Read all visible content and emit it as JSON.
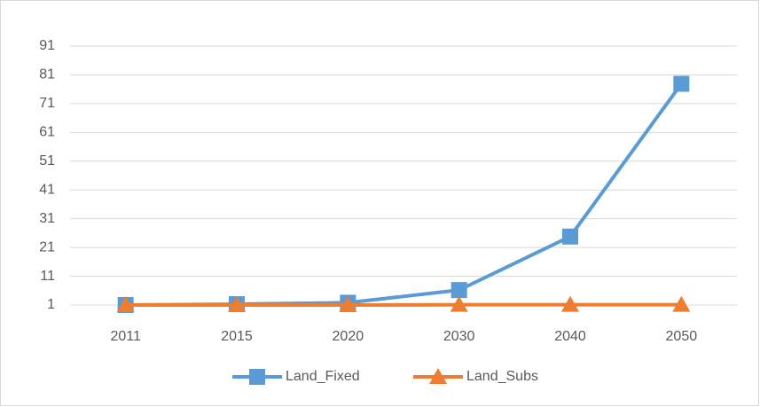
{
  "chart_data": {
    "type": "line",
    "categories": [
      "2011",
      "2015",
      "2020",
      "2030",
      "2040",
      "2050"
    ],
    "series": [
      {
        "name": "Land_Fixed",
        "color": "#5b9bd5",
        "marker": "square",
        "values": [
          1,
          1.3,
          1.8,
          6.2,
          24.8,
          77.9
        ]
      },
      {
        "name": "Land_Subs",
        "color": "#ed7d31",
        "marker": "triangle",
        "values": [
          1,
          1,
          1,
          1.1,
          1.1,
          1.1
        ]
      }
    ],
    "ylim": [
      1,
      91
    ],
    "yticks": [
      1,
      11,
      21,
      31,
      41,
      51,
      61,
      71,
      81,
      91
    ],
    "grid": true,
    "legend": "bottom"
  }
}
